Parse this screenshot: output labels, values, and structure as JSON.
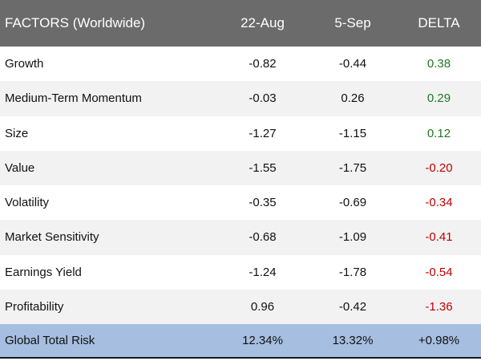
{
  "header": {
    "factor": "FACTORS (Worldwide)",
    "date1": "22-Aug",
    "date2": "5-Sep",
    "delta": "DELTA"
  },
  "rows": [
    {
      "factor": "Growth",
      "v1": "-0.82",
      "v2": "-0.44",
      "delta": "0.38",
      "delta_sign": "pos"
    },
    {
      "factor": "Medium-Term Momentum",
      "v1": "-0.03",
      "v2": "0.26",
      "delta": "0.29",
      "delta_sign": "pos"
    },
    {
      "factor": "Size",
      "v1": "-1.27",
      "v2": "-1.15",
      "delta": "0.12",
      "delta_sign": "pos"
    },
    {
      "factor": "Value",
      "v1": "-1.55",
      "v2": "-1.75",
      "delta": "-0.20",
      "delta_sign": "neg"
    },
    {
      "factor": "Volatility",
      "v1": "-0.35",
      "v2": "-0.69",
      "delta": "-0.34",
      "delta_sign": "neg"
    },
    {
      "factor": "Market Sensitivity",
      "v1": "-0.68",
      "v2": "-1.09",
      "delta": "-0.41",
      "delta_sign": "neg"
    },
    {
      "factor": "Earnings Yield",
      "v1": "-1.24",
      "v2": "-1.78",
      "delta": "-0.54",
      "delta_sign": "neg"
    },
    {
      "factor": "Profitability",
      "v1": "0.96",
      "v2": "-0.42",
      "delta": "-1.36",
      "delta_sign": "neg"
    }
  ],
  "total": {
    "label": "Global Total Risk",
    "v1": "12.34%",
    "v2": "13.32%",
    "delta": "+0.98%"
  },
  "colors": {
    "header_bg": "#6b6b6b",
    "total_bg": "#a6bedf",
    "positive": "#1e7a1e",
    "negative": "#c00000"
  }
}
